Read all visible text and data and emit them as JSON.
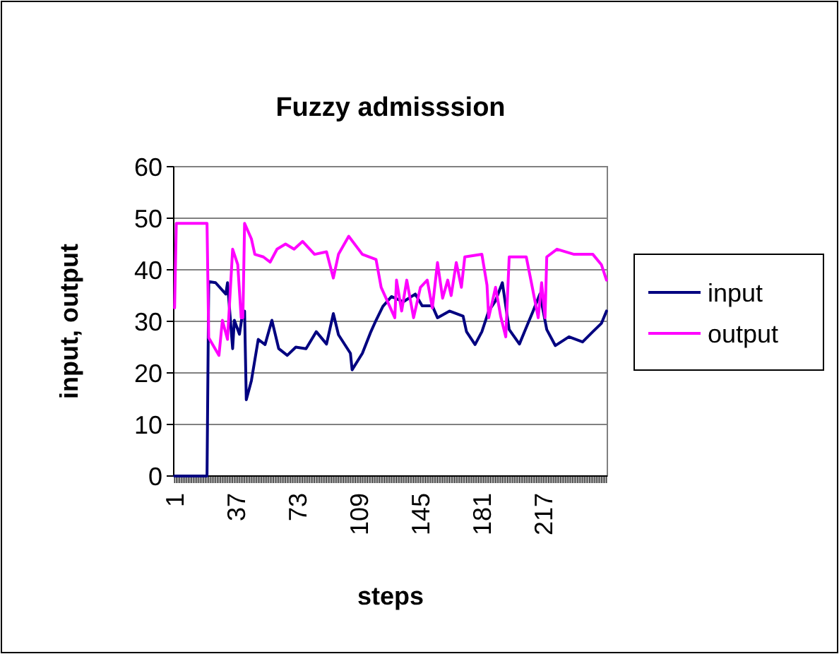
{
  "chart_data": {
    "type": "line",
    "title": "Fuzzy admisssion",
    "xlabel": "steps",
    "ylabel": "input, output",
    "xlim": [
      0.5,
      254.5
    ],
    "xticks": [
      1,
      37,
      73,
      109,
      145,
      181,
      217
    ],
    "ylim": [
      0,
      60
    ],
    "yticks": [
      0,
      10,
      20,
      30,
      40,
      50,
      60
    ],
    "grid": "y",
    "legend": "right",
    "marker": "none",
    "line_style": "solid",
    "series": [
      {
        "name": "input",
        "color": "#000080",
        "x": [
          1,
          20,
          21,
          25,
          31,
          32,
          35,
          36,
          39,
          41,
          42,
          43,
          46,
          50,
          54,
          58,
          62,
          67,
          72,
          78,
          84,
          90,
          94,
          97,
          104,
          105,
          111,
          116,
          119,
          123,
          128,
          135,
          142,
          146,
          152,
          155,
          162,
          170,
          172,
          177,
          181,
          185,
          189,
          193,
          197,
          203,
          206,
          211,
          215,
          219,
          224,
          232,
          240,
          246,
          251,
          254
        ],
        "values": [
          0,
          0,
          37.7,
          37.5,
          35.3,
          37.5,
          24.7,
          30.2,
          27.5,
          32,
          32,
          14.8,
          18.5,
          26.5,
          25.5,
          30.2,
          24.7,
          23.4,
          25,
          24.7,
          28,
          25.6,
          31.5,
          27.4,
          23.8,
          20.6,
          23.8,
          28,
          30.2,
          32.9,
          34.8,
          33.8,
          35.3,
          33,
          33,
          30.7,
          32,
          31,
          28,
          25.5,
          28,
          32,
          34,
          37.5,
          28.4,
          25.6,
          28,
          32,
          35.3,
          28.4,
          25.3,
          27,
          26,
          28,
          29.6,
          32
        ]
      },
      {
        "name": "output",
        "color": "#ff00ff",
        "x": [
          1,
          2,
          20,
          21,
          27,
          29,
          32,
          35,
          38,
          40,
          41,
          42,
          46,
          48,
          53,
          57,
          61,
          66,
          71,
          76,
          83,
          90,
          94,
          97,
          103,
          111,
          119,
          122,
          130,
          131,
          134,
          137,
          141,
          145,
          149,
          152,
          155,
          158,
          161,
          163,
          166,
          169,
          171,
          181,
          184,
          185,
          189,
          192,
          195,
          197,
          207,
          210,
          214,
          216,
          218,
          219,
          225,
          235,
          246,
          251,
          254
        ],
        "values": [
          32.6,
          49,
          49,
          26.8,
          23.4,
          30.2,
          26.5,
          44,
          41,
          30.7,
          30.7,
          49,
          46,
          43,
          42.5,
          41.5,
          44,
          45,
          44,
          45.5,
          43,
          43.5,
          38.4,
          43,
          46.5,
          43,
          42,
          36.6,
          30.7,
          38,
          32,
          38,
          30.7,
          36.6,
          38,
          32.6,
          41.4,
          34.5,
          38,
          35,
          41.4,
          36.6,
          42.5,
          43,
          37,
          30.7,
          36.6,
          31,
          27,
          42.5,
          42.5,
          37.5,
          30.7,
          37.5,
          30.7,
          42.5,
          44,
          43,
          43,
          41,
          38
        ]
      }
    ]
  }
}
